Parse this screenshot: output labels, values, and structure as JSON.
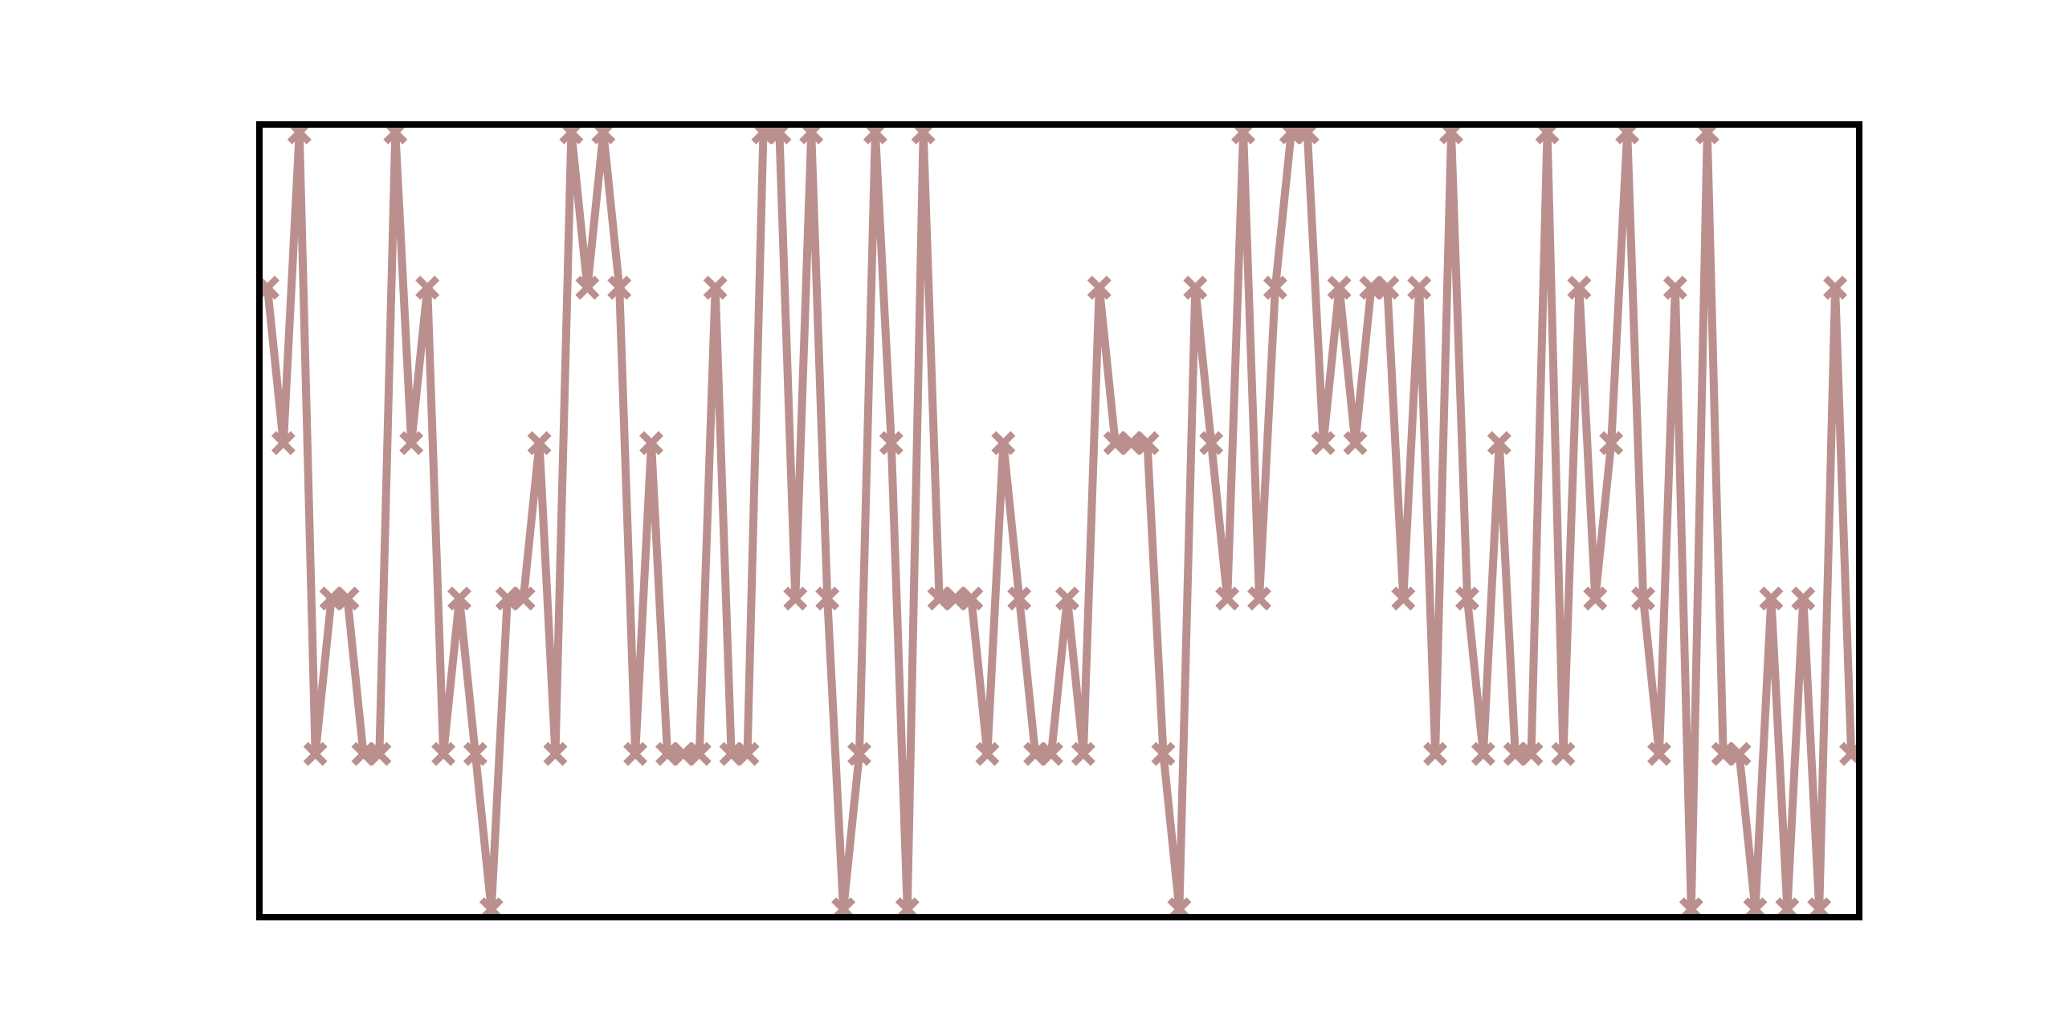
{
  "chart_data": {
    "type": "line",
    "title": "",
    "xlabel": "",
    "ylabel": "",
    "grid": false,
    "ticks_visible": false,
    "legend": "none",
    "x": [
      0,
      1,
      2,
      3,
      4,
      5,
      6,
      7,
      8,
      9,
      10,
      11,
      12,
      13,
      14,
      15,
      16,
      17,
      18,
      19,
      20,
      21,
      22,
      23,
      24,
      25,
      26,
      27,
      28,
      29,
      30,
      31,
      32,
      33,
      34,
      35,
      36,
      37,
      38,
      39,
      40,
      41,
      42,
      43,
      44,
      45,
      46,
      47,
      48,
      49,
      50,
      51,
      52,
      53,
      54,
      55,
      56,
      57,
      58,
      59,
      60,
      61,
      62,
      63,
      64,
      65,
      66,
      67,
      68,
      69,
      70,
      71,
      72,
      73,
      74,
      75,
      76,
      77,
      78,
      79,
      80,
      81,
      82,
      83,
      84,
      85,
      86,
      87,
      88,
      89,
      90,
      91,
      92,
      93,
      94,
      95,
      96,
      97,
      98,
      99
    ],
    "series": [
      {
        "color": "#bc8f8f",
        "marker": "X",
        "values": [
          4,
          3,
          5,
          1,
          2,
          2,
          1,
          1,
          5,
          3,
          4,
          1,
          2,
          1,
          0,
          2,
          2,
          3,
          1,
          5,
          4,
          5,
          4,
          1,
          3,
          1,
          1,
          1,
          4,
          1,
          1,
          5,
          5,
          2,
          5,
          2,
          0,
          1,
          5,
          3,
          0,
          5,
          2,
          2,
          2,
          1,
          3,
          2,
          1,
          1,
          2,
          1,
          4,
          3,
          3,
          3,
          1,
          0,
          4,
          3,
          2,
          5,
          2,
          4,
          5,
          5,
          3,
          4,
          3,
          4,
          4,
          2,
          4,
          1,
          5,
          2,
          1,
          3,
          1,
          1,
          5,
          1,
          4,
          2,
          3,
          5,
          2,
          1,
          4,
          0,
          5,
          1,
          1,
          0,
          2,
          0,
          2,
          0,
          4,
          1
        ]
      }
    ],
    "xlim": [
      -0.5,
      99.5
    ],
    "ylim": [
      -0.05,
      5.05
    ]
  }
}
